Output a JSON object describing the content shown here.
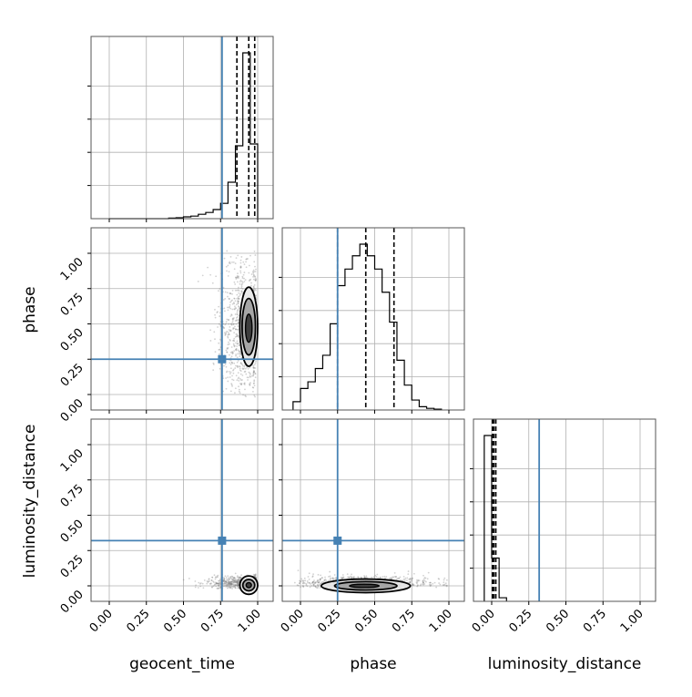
{
  "chart_data": {
    "type": "corner",
    "parameters": [
      "geocent_time",
      "phase",
      "luminosity_distance"
    ],
    "axis_labels": {
      "geocent_time": "geocent_time",
      "phase": "phase",
      "luminosity_distance": "luminosity_distance"
    },
    "range": [
      0,
      1.0
    ],
    "ticks": [
      "0.00",
      "0.25",
      "0.50",
      "0.75",
      "1.00"
    ],
    "tick_values": [
      0,
      0.25,
      0.5,
      0.75,
      1.0
    ],
    "grid": true,
    "colors": {
      "truth": "#4682b4",
      "hist": "#000000",
      "quantile": "#000000",
      "scatter": "#7f7f7f"
    },
    "truths": {
      "geocent_time": 0.76,
      "phase": 0.25,
      "luminosity_distance": 0.32
    },
    "quantiles": {
      "geocent_time": [
        0.86,
        0.94,
        0.98
      ],
      "phase": [
        0.25,
        0.44,
        0.63
      ],
      "luminosity_distance": [
        0.005,
        0.015,
        0.028
      ]
    },
    "histograms": {
      "geocent_time": {
        "edges": [
          0.0,
          0.05,
          0.1,
          0.15,
          0.2,
          0.25,
          0.3,
          0.35,
          0.4,
          0.45,
          0.5,
          0.55,
          0.6,
          0.65,
          0.7,
          0.75,
          0.8,
          0.85,
          0.9,
          0.95,
          1.0
        ],
        "counts": [
          0,
          0,
          0,
          0,
          0,
          0,
          0,
          0,
          0.003,
          0.005,
          0.01,
          0.014,
          0.024,
          0.034,
          0.05,
          0.084,
          0.2,
          0.4,
          0.91,
          0.41
        ]
      },
      "phase": {
        "edges": [
          -0.05,
          0.0,
          0.05,
          0.1,
          0.15,
          0.2,
          0.25,
          0.3,
          0.35,
          0.4,
          0.45,
          0.5,
          0.55,
          0.6,
          0.65,
          0.7,
          0.75,
          0.8,
          0.85,
          0.9,
          0.95
        ],
        "counts": [
          0.05,
          0.13,
          0.17,
          0.25,
          0.33,
          0.52,
          0.75,
          0.85,
          0.93,
          1.0,
          0.93,
          0.85,
          0.71,
          0.53,
          0.3,
          0.15,
          0.06,
          0.02,
          0.01,
          0.005
        ]
      },
      "luminosity_distance": {
        "edges": [
          -0.05,
          0.0,
          0.05,
          0.1
        ],
        "counts": [
          0.92,
          0.24,
          0.02
        ]
      }
    },
    "density_2d": [
      {
        "x": "geocent_time",
        "y": "phase",
        "scatter": {
          "x_center": 0.9,
          "x_spread": 0.09,
          "y_center": 0.45,
          "y_spread": 0.28,
          "n": 900,
          "x_min": 0.02,
          "y_min": -0.02,
          "y_max": 1.02
        },
        "contours": [
          {
            "cx": 0.94,
            "cy": 0.48,
            "rx": 0.06,
            "ry": 0.28
          },
          {
            "cx": 0.94,
            "cy": 0.48,
            "rx": 0.045,
            "ry": 0.2
          },
          {
            "cx": 0.94,
            "cy": 0.47,
            "rx": 0.022,
            "ry": 0.1
          }
        ]
      },
      {
        "x": "geocent_time",
        "y": "luminosity_distance",
        "scatter": {
          "x_center": 0.9,
          "x_spread": 0.12,
          "y_center": 0.02,
          "y_spread": 0.025,
          "n": 700,
          "x_min": 0.15,
          "y_min": -0.02,
          "y_max": 0.1
        },
        "contours": [
          {
            "cx": 0.94,
            "cy": 0.005,
            "rx": 0.06,
            "ry": 0.065
          },
          {
            "cx": 0.94,
            "cy": 0.005,
            "rx": 0.04,
            "ry": 0.04
          },
          {
            "cx": 0.94,
            "cy": 0.005,
            "rx": 0.018,
            "ry": 0.018
          }
        ]
      },
      {
        "x": "phase",
        "y": "luminosity_distance",
        "scatter": {
          "x_center": 0.42,
          "x_spread": 0.22,
          "y_center": 0.02,
          "y_spread": 0.025,
          "n": 900,
          "x_min": -0.04,
          "y_min": -0.02,
          "y_max": 0.11
        },
        "contours": [
          {
            "cx": 0.44,
            "cy": 0.0,
            "rx": 0.3,
            "ry": 0.048
          },
          {
            "cx": 0.44,
            "cy": 0.0,
            "rx": 0.21,
            "ry": 0.03
          },
          {
            "cx": 0.43,
            "cy": 0.0,
            "rx": 0.1,
            "ry": 0.012
          }
        ]
      }
    ]
  }
}
